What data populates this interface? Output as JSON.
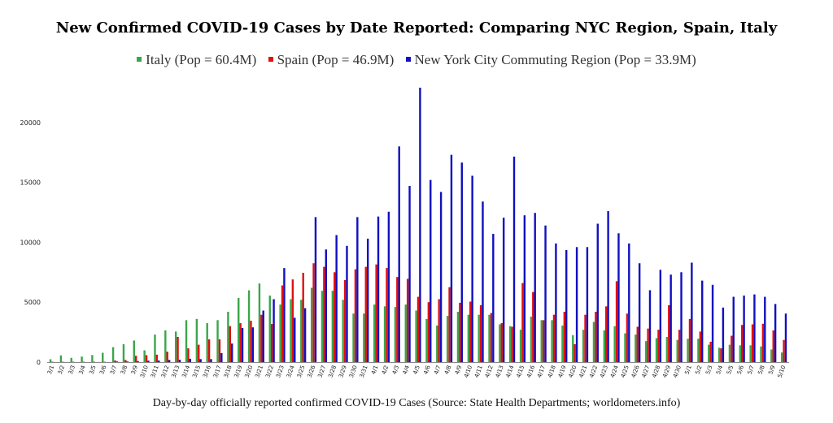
{
  "chart_data": {
    "type": "bar",
    "title": "New Confirmed COVID-19 Cases by Date Reported: Comparing NYC Region, Spain, Italy",
    "caption": "Day-by-day officially reported confirmed COVID-19 Cases (Source: State Health Departments; worldometers.info)",
    "xlabel": "",
    "ylabel": "",
    "ylim": [
      0,
      22900
    ],
    "yticks": [
      0,
      5000,
      10000,
      15000,
      20000
    ],
    "grid": false,
    "legend_position": "top-center",
    "categories": [
      "3/1",
      "3/2",
      "3/3",
      "3/4",
      "3/5",
      "3/6",
      "3/7",
      "3/8",
      "3/9",
      "3/10",
      "3/11",
      "3/12",
      "3/13",
      "3/14",
      "3/15",
      "3/16",
      "3/17",
      "3/18",
      "3/19",
      "3/20",
      "3/21",
      "3/22",
      "3/23",
      "3/24",
      "3/25",
      "3/26",
      "3/27",
      "3/28",
      "3/29",
      "3/30",
      "3/31",
      "4/1",
      "4/2",
      "4/3",
      "4/4",
      "4/5",
      "4/6",
      "4/7",
      "4/8",
      "4/9",
      "4/10",
      "4/11",
      "4/12",
      "4/13",
      "4/14",
      "4/15",
      "4/16",
      "4/17",
      "4/18",
      "4/19",
      "4/20",
      "4/21",
      "4/22",
      "4/23",
      "4/24",
      "4/25",
      "4/26",
      "4/27",
      "4/28",
      "4/29",
      "4/30",
      "5/1",
      "5/2",
      "5/3",
      "5/4",
      "5/5",
      "5/6",
      "5/7",
      "5/8",
      "5/9",
      "5/10"
    ],
    "series": [
      {
        "name": "Italy (Pop = 60.4M)",
        "color": "#3aa64a",
        "values": [
          240,
          560,
          350,
          460,
          590,
          780,
          1250,
          1490,
          1800,
          980,
          2300,
          2650,
          2550,
          3500,
          3600,
          3250,
          3500,
          4200,
          5350,
          5990,
          6560,
          5550,
          4800,
          5250,
          5200,
          6200,
          5950,
          5950,
          5200,
          4050,
          4050,
          4800,
          4650,
          4600,
          4800,
          4300,
          3600,
          3050,
          3850,
          4200,
          3950,
          3950,
          3950,
          3150,
          3000,
          2700,
          3800,
          3500,
          3500,
          3050,
          2250,
          2700,
          3350,
          2650,
          3000,
          2400,
          2300,
          1750,
          2000,
          2100,
          1850,
          1950,
          1950,
          1450,
          1200,
          1450,
          1400,
          1400,
          1300,
          1050,
          800
        ]
      },
      {
        "name": "Spain (Pop = 46.9M)",
        "color": "#e01010",
        "values": [
          30,
          30,
          30,
          30,
          30,
          30,
          140,
          180,
          530,
          580,
          620,
          870,
          2100,
          1150,
          1450,
          1900,
          1900,
          3000,
          3250,
          3450,
          3950,
          3180,
          6400,
          6900,
          7450,
          8250,
          7950,
          7500,
          6850,
          7750,
          7950,
          8150,
          7850,
          7100,
          6950,
          5450,
          5000,
          5250,
          6250,
          4950,
          5050,
          4750,
          4100,
          3250,
          2950,
          6600,
          5850,
          3500,
          3950,
          4200,
          1500,
          3950,
          4200,
          4650,
          6750,
          4050,
          2950,
          2800,
          2700,
          4750,
          2700,
          3600,
          2550,
          1700,
          1150,
          2200,
          3100,
          3150,
          3200,
          2650,
          1850
        ]
      },
      {
        "name": "New York City Commuting Region (Pop = 33.9M)",
        "color": "#1010c0",
        "values": [
          0,
          0,
          0,
          0,
          0,
          0,
          50,
          50,
          80,
          120,
          130,
          180,
          200,
          280,
          250,
          250,
          750,
          1550,
          2850,
          2900,
          4300,
          5250,
          7850,
          3700,
          4500,
          12100,
          9400,
          10600,
          9700,
          12100,
          10300,
          12150,
          12550,
          18000,
          14700,
          22900,
          15200,
          14200,
          17300,
          16650,
          15550,
          13400,
          10700,
          12050,
          17150,
          12250,
          12450,
          11400,
          9900,
          9350,
          9600,
          9600,
          11550,
          12600,
          10750,
          9900,
          8250,
          6000,
          7700,
          7300,
          7500,
          8300,
          6800,
          6450,
          4550,
          5450,
          5550,
          5650,
          5450,
          4850,
          4050
        ]
      }
    ]
  }
}
